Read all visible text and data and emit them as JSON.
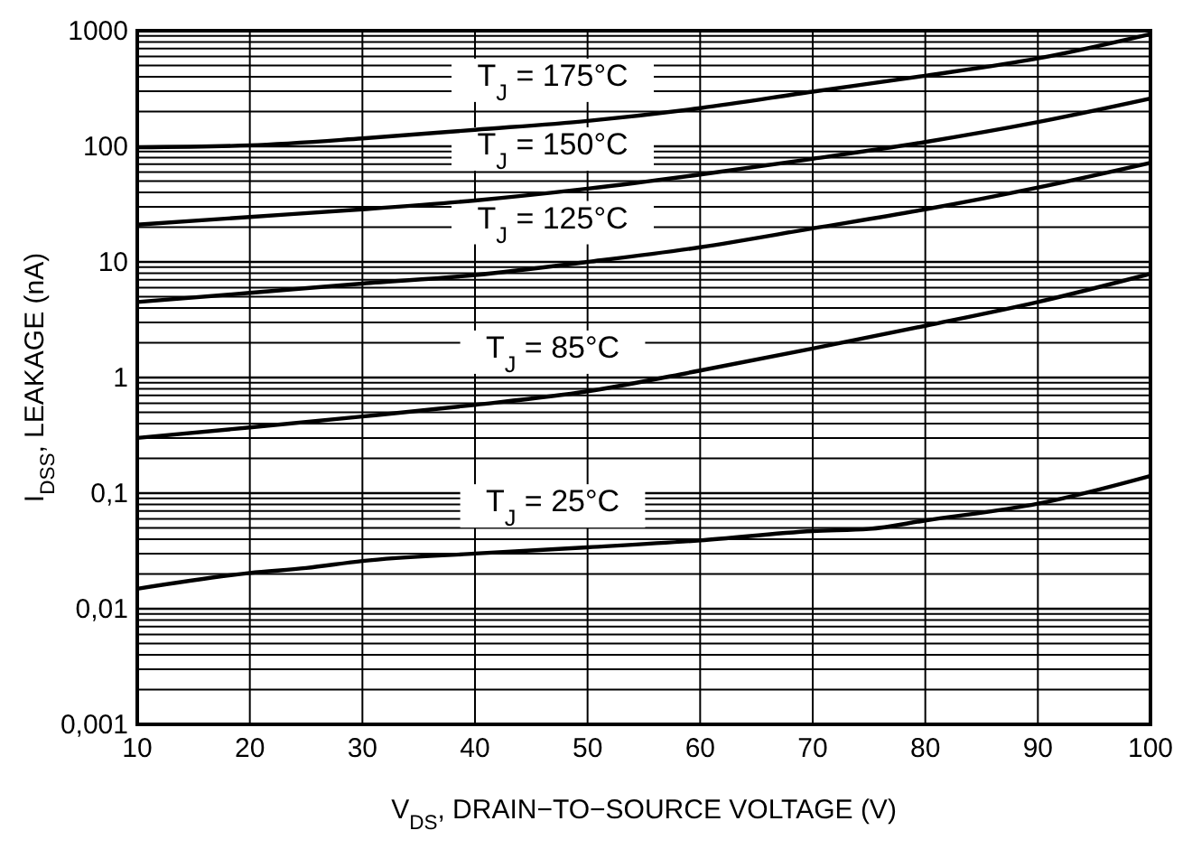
{
  "chart_data": {
    "type": "line",
    "xlabel": "V$_{DS}$, DRAIN−TO−SOURCE VOLTAGE (V)",
    "ylabel": "I$_{DSS}$, LEAKAGE (nA)",
    "log": "y",
    "grid": true,
    "legend": false,
    "marker": "none",
    "line_style": "solid",
    "x": [
      10,
      20,
      30,
      40,
      50,
      60,
      70,
      80,
      90,
      100
    ],
    "xlim": [
      10,
      100
    ],
    "xticks": [
      10,
      20,
      30,
      40,
      50,
      60,
      70,
      80,
      90,
      100
    ],
    "ylim": [
      0.001,
      1000
    ],
    "yticks": [
      {
        "value": 0.001,
        "label": "0,001"
      },
      {
        "value": 0.002,
        "label": null
      },
      {
        "value": 0.003,
        "label": null
      },
      {
        "value": 0.004,
        "label": null
      },
      {
        "value": 0.005,
        "label": null
      },
      {
        "value": 0.006,
        "label": null
      },
      {
        "value": 0.007,
        "label": null
      },
      {
        "value": 0.008,
        "label": null
      },
      {
        "value": 0.009,
        "label": null
      },
      {
        "value": 0.01,
        "label": "0,01"
      },
      {
        "value": 0.02,
        "label": null
      },
      {
        "value": 0.03,
        "label": null
      },
      {
        "value": 0.04,
        "label": null
      },
      {
        "value": 0.05,
        "label": null
      },
      {
        "value": 0.06,
        "label": null
      },
      {
        "value": 0.07,
        "label": null
      },
      {
        "value": 0.08,
        "label": null
      },
      {
        "value": 0.09,
        "label": null
      },
      {
        "value": 0.1,
        "label": "0,1"
      },
      {
        "value": 0.2,
        "label": null
      },
      {
        "value": 0.3,
        "label": null
      },
      {
        "value": 0.4,
        "label": null
      },
      {
        "value": 0.5,
        "label": null
      },
      {
        "value": 0.6,
        "label": null
      },
      {
        "value": 0.7,
        "label": null
      },
      {
        "value": 0.8,
        "label": null
      },
      {
        "value": 0.9,
        "label": null
      },
      1,
      {
        "value": 2,
        "label": null
      },
      {
        "value": 3,
        "label": null
      },
      {
        "value": 4,
        "label": null
      },
      {
        "value": 5,
        "label": null
      },
      {
        "value": 6,
        "label": null
      },
      {
        "value": 7,
        "label": null
      },
      {
        "value": 8,
        "label": null
      },
      {
        "value": 9,
        "label": null
      },
      10,
      {
        "value": 20,
        "label": null
      },
      {
        "value": 30,
        "label": null
      },
      {
        "value": 40,
        "label": null
      },
      {
        "value": 50,
        "label": null
      },
      {
        "value": 60,
        "label": null
      },
      {
        "value": 70,
        "label": null
      },
      {
        "value": 80,
        "label": null
      },
      {
        "value": 90,
        "label": null
      },
      100,
      {
        "value": 200,
        "label": null
      },
      {
        "value": 300,
        "label": null
      },
      {
        "value": 400,
        "label": null
      },
      {
        "value": 500,
        "label": null
      },
      {
        "value": 600,
        "label": null
      },
      {
        "value": 700,
        "label": null
      },
      {
        "value": 800,
        "label": null
      },
      {
        "value": 900,
        "label": null
      },
      1000
    ],
    "series": [
      {
        "name": "T$_{J}$ = 175°C",
        "color": "#000000",
        "values": [
          98,
          102,
          117,
          139,
          166,
          214,
          297,
          408,
          576,
          935
        ]
      },
      {
        "name": "T$_{J}$ = 150°C",
        "color": "#000000",
        "values": [
          21,
          24.5,
          28.5,
          34,
          43,
          57,
          78,
          109,
          162,
          259
        ]
      },
      {
        "name": "T$_{J}$ = 125°C",
        "color": "#000000",
        "values": [
          4.5,
          5.4,
          6.5,
          7.7,
          10,
          13.4,
          19.5,
          28.5,
          44,
          72
        ]
      },
      {
        "name": "T$_{J}$ = 85°C",
        "color": "#000000",
        "values": [
          0.3,
          0.37,
          0.46,
          0.58,
          0.76,
          1.15,
          1.78,
          2.8,
          4.5,
          7.9
        ]
      },
      {
        "name": "T$_{J}$ = 25°C",
        "color": "#000000",
        "x": [
          10,
          20,
          25,
          30,
          40,
          50,
          60,
          70,
          75,
          80,
          90,
          100
        ],
        "values": [
          0.0149,
          0.0204,
          0.0225,
          0.0259,
          0.03,
          0.034,
          0.039,
          0.047,
          0.049,
          0.058,
          0.081,
          0.141
        ]
      }
    ]
  }
}
